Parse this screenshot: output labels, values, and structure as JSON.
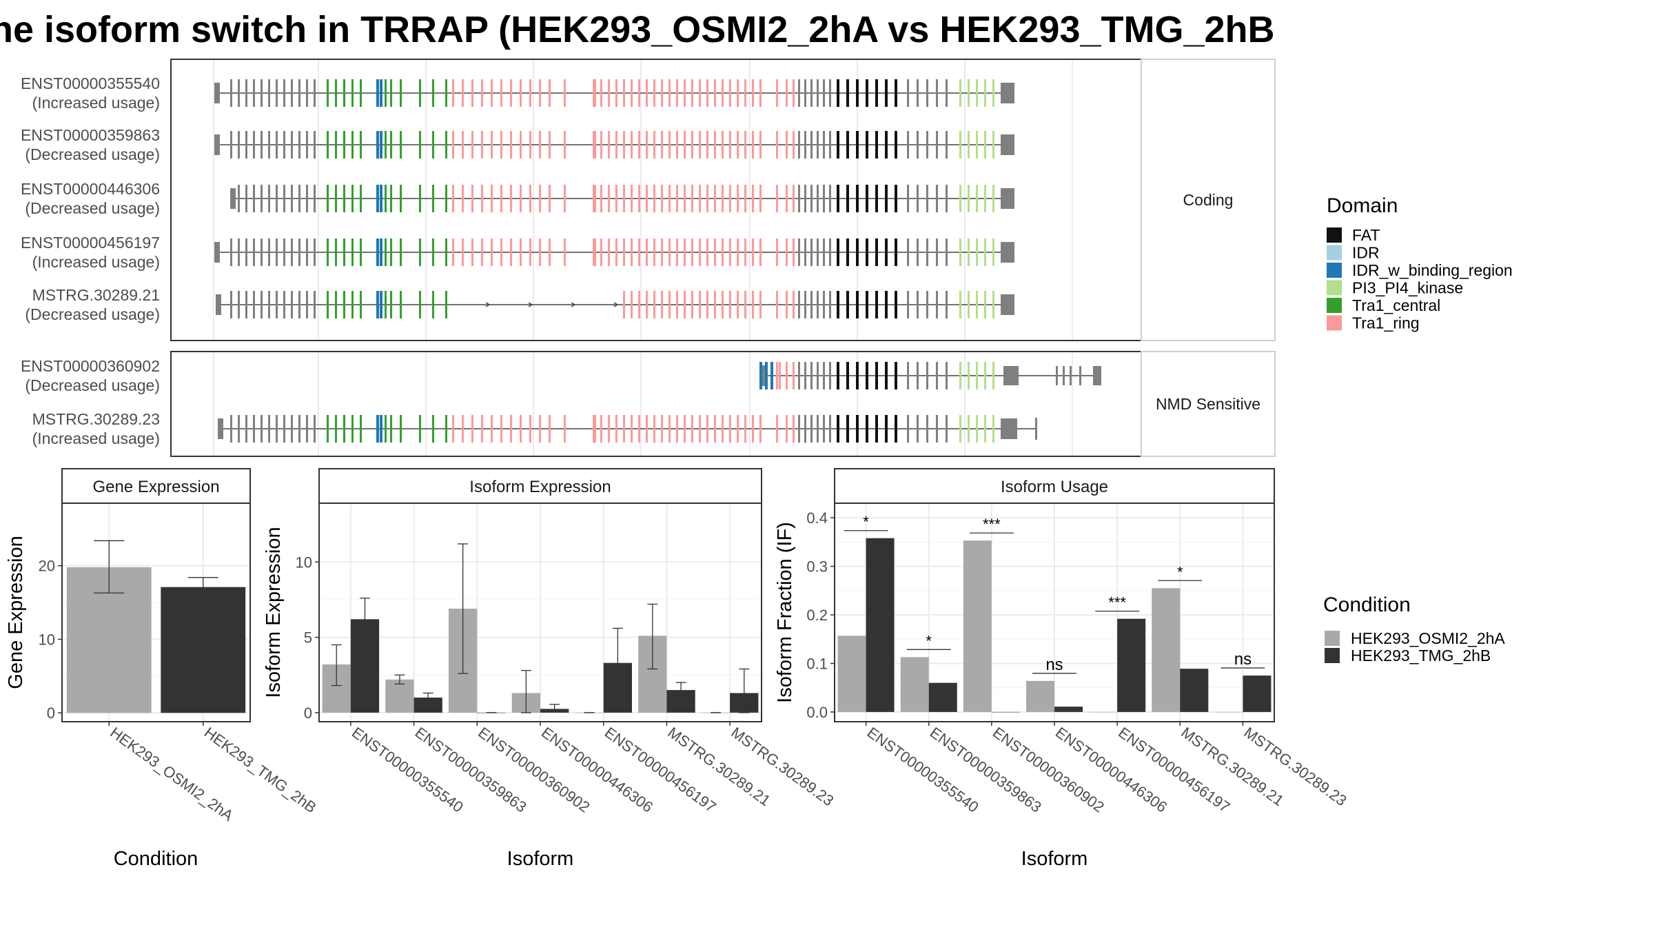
{
  "title": "he isoform switch in TRRAP (HEK293_OSMI2_2hA vs HEK293_TMG_2hB",
  "structure": {
    "facets": [
      "Coding",
      "NMD Sensitive"
    ],
    "legend_title": "Domain",
    "domains": [
      {
        "name": "FAT",
        "color": "#111111"
      },
      {
        "name": "IDR",
        "color": "#a6cee3"
      },
      {
        "name": "IDR_w_binding_region",
        "color": "#1f78b4"
      },
      {
        "name": "PI3_PI4_kinase",
        "color": "#b2df8a"
      },
      {
        "name": "Tra1_central",
        "color": "#33a02c"
      },
      {
        "name": "Tra1_ring",
        "color": "#fb9a99"
      }
    ],
    "non_domain_exon_color": "#7f7f7f",
    "transcripts": [
      {
        "id": "ENST00000355540",
        "usage": "(Increased usage)",
        "facet": "Coding"
      },
      {
        "id": "ENST00000359863",
        "usage": "(Decreased usage)",
        "facet": "Coding"
      },
      {
        "id": "ENST00000446306",
        "usage": "(Decreased usage)",
        "facet": "Coding"
      },
      {
        "id": "ENST00000456197",
        "usage": "(Increased usage)",
        "facet": "Coding"
      },
      {
        "id": "MSTRG.30289.21",
        "usage": "(Decreased usage)",
        "facet": "Coding"
      },
      {
        "id": "ENST00000360902",
        "usage": "(Decreased usage)",
        "facet": "NMD Sensitive"
      },
      {
        "id": "MSTRG.30289.23",
        "usage": "(Increased usage)",
        "facet": "NMD Sensitive"
      }
    ]
  },
  "condition_legend": {
    "title": "Condition",
    "items": [
      {
        "name": "HEK293_OSMI2_2hA",
        "color": "#a9a9a9"
      },
      {
        "name": "HEK293_TMG_2hB",
        "color": "#333333"
      }
    ]
  },
  "chart_data": [
    {
      "type": "bar",
      "title": "Gene Expression",
      "xlabel": "Condition",
      "ylabel": "Gene Expression",
      "categories": [
        "HEK293_OSMI2_2hA",
        "HEK293_TMG_2hB"
      ],
      "values": [
        19.8,
        17.1
      ],
      "error_low": [
        16.3,
        15.8
      ],
      "error_high": [
        23.4,
        18.4
      ],
      "ylim": [
        -1.2,
        28.5
      ],
      "yticks": [
        0,
        10,
        20
      ]
    },
    {
      "type": "bar",
      "title": "Isoform Expression",
      "xlabel": "Isoform",
      "ylabel": "Isoform Expression",
      "categories": [
        "ENST00000355540",
        "ENST00000359863",
        "ENST00000360902",
        "ENST00000446306",
        "ENST00000456197",
        "MSTRG.30289.21",
        "MSTRG.30289.23"
      ],
      "series": [
        {
          "name": "HEK293_OSMI2_2hA",
          "values": [
            3.2,
            2.2,
            6.9,
            1.3,
            0.0,
            5.1,
            0.0
          ],
          "error_low": [
            1.8,
            1.9,
            2.6,
            0.0,
            0.0,
            2.9,
            0.0
          ],
          "error_high": [
            4.5,
            2.5,
            11.2,
            2.8,
            0.0,
            7.2,
            0.0
          ]
        },
        {
          "name": "HEK293_TMG_2hB",
          "values": [
            6.2,
            1.0,
            0.0,
            0.25,
            3.3,
            1.5,
            1.3
          ],
          "error_low": [
            4.7,
            0.7,
            0.0,
            0.1,
            1.0,
            1.0,
            0.0
          ],
          "error_high": [
            7.6,
            1.3,
            0.0,
            0.55,
            5.6,
            2.0,
            2.9
          ]
        }
      ],
      "ylim": [
        -0.6,
        13.9
      ],
      "yticks": [
        0,
        5,
        10
      ]
    },
    {
      "type": "bar",
      "title": "Isoform Usage",
      "xlabel": "Isoform",
      "ylabel": "Isoform Fraction (IF)",
      "categories": [
        "ENST00000355540",
        "ENST00000359863",
        "ENST00000360902",
        "ENST00000446306",
        "ENST00000456197",
        "MSTRG.30289.21",
        "MSTRG.30289.23"
      ],
      "series": [
        {
          "name": "HEK293_OSMI2_2hA",
          "values": [
            0.157,
            0.113,
            0.353,
            0.064,
            0.0,
            0.255,
            0.0
          ]
        },
        {
          "name": "HEK293_TMG_2hB",
          "values": [
            0.358,
            0.06,
            0.0,
            0.011,
            0.192,
            0.089,
            0.075
          ]
        }
      ],
      "significance": [
        "*",
        "*",
        "***",
        "ns",
        "***",
        "*",
        "ns"
      ],
      "ylim": [
        -0.02,
        0.43
      ],
      "yticks": [
        0.0,
        0.1,
        0.2,
        0.3,
        0.4
      ]
    }
  ]
}
